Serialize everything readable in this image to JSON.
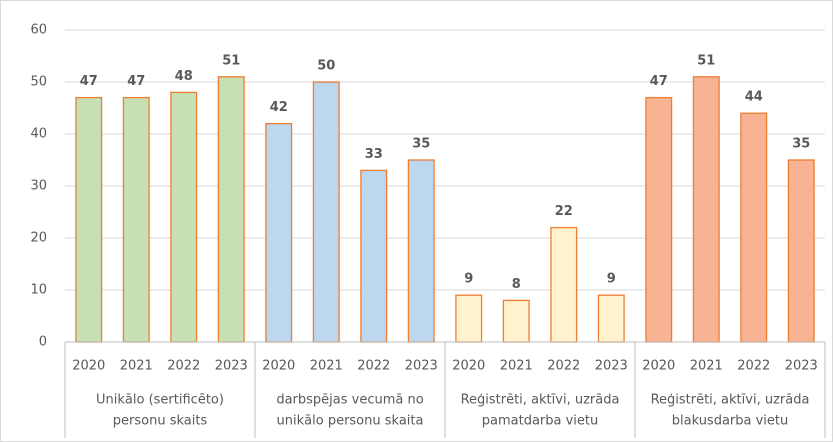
{
  "chart_data": {
    "type": "bar",
    "ylim": [
      0,
      60
    ],
    "yticks": [
      0,
      10,
      20,
      30,
      40,
      50,
      60
    ],
    "grid": true,
    "stroke": "#ed7d31",
    "groups": [
      {
        "label": [
          "Unikālo (sertificēto)",
          "personu skaits"
        ],
        "color": "#c6e0b4",
        "categories": [
          "2020",
          "2021",
          "2022",
          "2023"
        ],
        "values": [
          47,
          47,
          48,
          51
        ]
      },
      {
        "label": [
          "darbspējas vecumā no",
          "unikālo personu skaita"
        ],
        "color": "#bdd7ee",
        "categories": [
          "2020",
          "2021",
          "2022",
          "2023"
        ],
        "values": [
          42,
          50,
          33,
          35
        ]
      },
      {
        "label": [
          "Reģistrēti, aktīvi, uzrāda",
          "pamatdarba vietu"
        ],
        "color": "#fff2cc",
        "categories": [
          "2020",
          "2021",
          "2022",
          "2023"
        ],
        "values": [
          9,
          8,
          22,
          9
        ]
      },
      {
        "label": [
          "Reģistrēti, aktīvi, uzrāda",
          "blakusdarba vietu"
        ],
        "color": "#f7b393",
        "categories": [
          "2020",
          "2021",
          "2022",
          "2023"
        ],
        "values": [
          47,
          51,
          44,
          35
        ]
      }
    ]
  }
}
